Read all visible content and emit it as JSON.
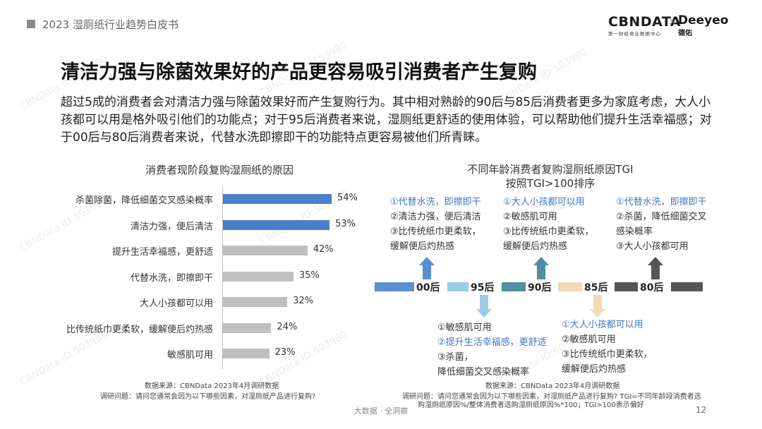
{
  "header": {
    "title": "2023 湿厕纸行业趋势白皮书",
    "logo_cbn": "CBΝDATA",
    "logo_cbn_sub": "第一财经商业数据中心",
    "logo_sep": "×",
    "logo_deeyeo": "Deeyeo",
    "logo_deeyeo_sub": "德佑"
  },
  "main": {
    "title": "清洁力强与除菌效果好的产品更容易吸引消费者产生复购",
    "summary": "超过5成的消费者会对清洁力强与除菌效果好而产生复购行为。其中相对熟龄的90后与85后消费者更多为家庭考虑，大人小孩都可以用是格外吸引他们的功能点；对于95后消费者来说，湿厕纸更舒适的使用体验，可以帮助他们提升生活幸福感；对于00后与80后消费者来说，代替水洗即擦即干的功能特点更容易被他们所青睐。"
  },
  "chart_data": [
    {
      "type": "bar",
      "orientation": "horizontal",
      "title": "消费者现阶段复购湿厕纸的原因",
      "categories": [
        "杀菌除菌，降低细菌交叉感染概率",
        "清洁力强，便后清洁",
        "提升生活幸福感，更舒适",
        "代替水洗，即擦即干",
        "大人小孩都可以用",
        "比传统纸巾更柔软，缓解便后灼热感",
        "敏感肌可用"
      ],
      "values": [
        54,
        53,
        42,
        35,
        32,
        24,
        23
      ],
      "value_labels": [
        "54%",
        "53%",
        "42%",
        "35%",
        "32%",
        "24%",
        "23%"
      ],
      "unit": "%",
      "highlight_color": "#4a7fc9",
      "default_color": "#bfbfbf",
      "highlight_count": 2
    }
  ],
  "left_source": {
    "line1": "数据来源：CBNData 2023年4月调研数据",
    "line2": "调研问题：请问您通常会因为以下哪些因素，对湿厕纸产品进行复购?"
  },
  "right_chart": {
    "title_line1": "不同年龄消费者复购湿厕纸原因TGI",
    "title_line2": "按照TGI>100排序",
    "timeline": [
      {
        "label": "00后",
        "color": "#5b8fd0"
      },
      {
        "label": "95后",
        "color": "#9ccbe6"
      },
      {
        "label": "90后",
        "color": "#4f8fa0"
      },
      {
        "label": "85后",
        "color": "#f2d9b8"
      },
      {
        "label": "80后",
        "color": "#555555"
      }
    ],
    "groups": {
      "g00": [
        "①代替水洗，即擦即干",
        "②清洁力强，便后清洁",
        "③比传统纸巾更柔软，",
        "缓解便后灼热感"
      ],
      "g90": [
        "①大人小孩都可以用",
        "②敏感肌可用",
        "③比传统纸巾更柔软，",
        "缓解便后灼热感"
      ],
      "g80": [
        "①代替水洗，即擦即干",
        "②杀菌，降低细菌交叉",
        "感染概率",
        "③大人小孩都可用"
      ],
      "g95": [
        "①敏感肌可用",
        "②提升生活幸福感，更舒适",
        "③杀菌，",
        "降低细菌交叉感染概率"
      ],
      "g85": [
        "①大人小孩都可以用",
        "②敏感肌可用",
        "③比传统纸巾更柔软，",
        "缓解便后灼热感"
      ]
    },
    "source_line1": "数据来源：CBNData 2023年4月调研数据",
    "source_line2": "调研问题：请问您通常会因为以下哪些因素，对湿厕纸产品进行复购? TGI=不同年龄段消费者选",
    "source_line3": "购湿厕纸原因%/整体消费者选购湿厕纸原因%*100；TGI>100表示偏好"
  },
  "footer": {
    "center": "大数据 · 全洞察",
    "page": "12"
  },
  "watermark": "CBNData ID:503980"
}
